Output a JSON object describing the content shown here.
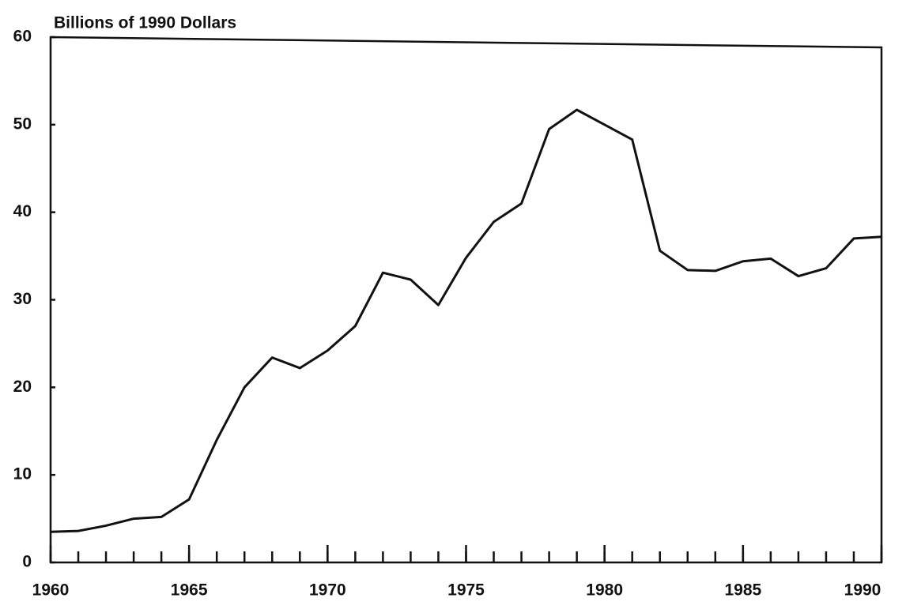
{
  "chart_data": {
    "type": "line",
    "ylabel": "Billions of 1990 Dollars",
    "x": [
      1960,
      1961,
      1962,
      1963,
      1964,
      1965,
      1966,
      1967,
      1968,
      1969,
      1970,
      1971,
      1972,
      1973,
      1974,
      1975,
      1976,
      1977,
      1978,
      1979,
      1980,
      1981,
      1982,
      1983,
      1984,
      1985,
      1986,
      1987,
      1988,
      1989,
      1990
    ],
    "series": [
      {
        "color": "#111111",
        "values": [
          3.5,
          3.6,
          4.2,
          5.0,
          5.2,
          7.2,
          14.0,
          20.0,
          23.4,
          22.2,
          24.2,
          27.0,
          33.1,
          32.3,
          29.4,
          34.8,
          38.9,
          41.0,
          49.5,
          51.7,
          50.0,
          48.3,
          35.6,
          33.4,
          33.3,
          34.4,
          34.7,
          32.7,
          33.6,
          37.0,
          37.2
        ]
      }
    ],
    "xlim": [
      1960,
      1990
    ],
    "xticks": [
      1960,
      1965,
      1970,
      1975,
      1980,
      1985,
      1990
    ],
    "ylim": [
      0,
      60
    ],
    "yticks": [
      0,
      10,
      20,
      30,
      40,
      50,
      60
    ]
  }
}
